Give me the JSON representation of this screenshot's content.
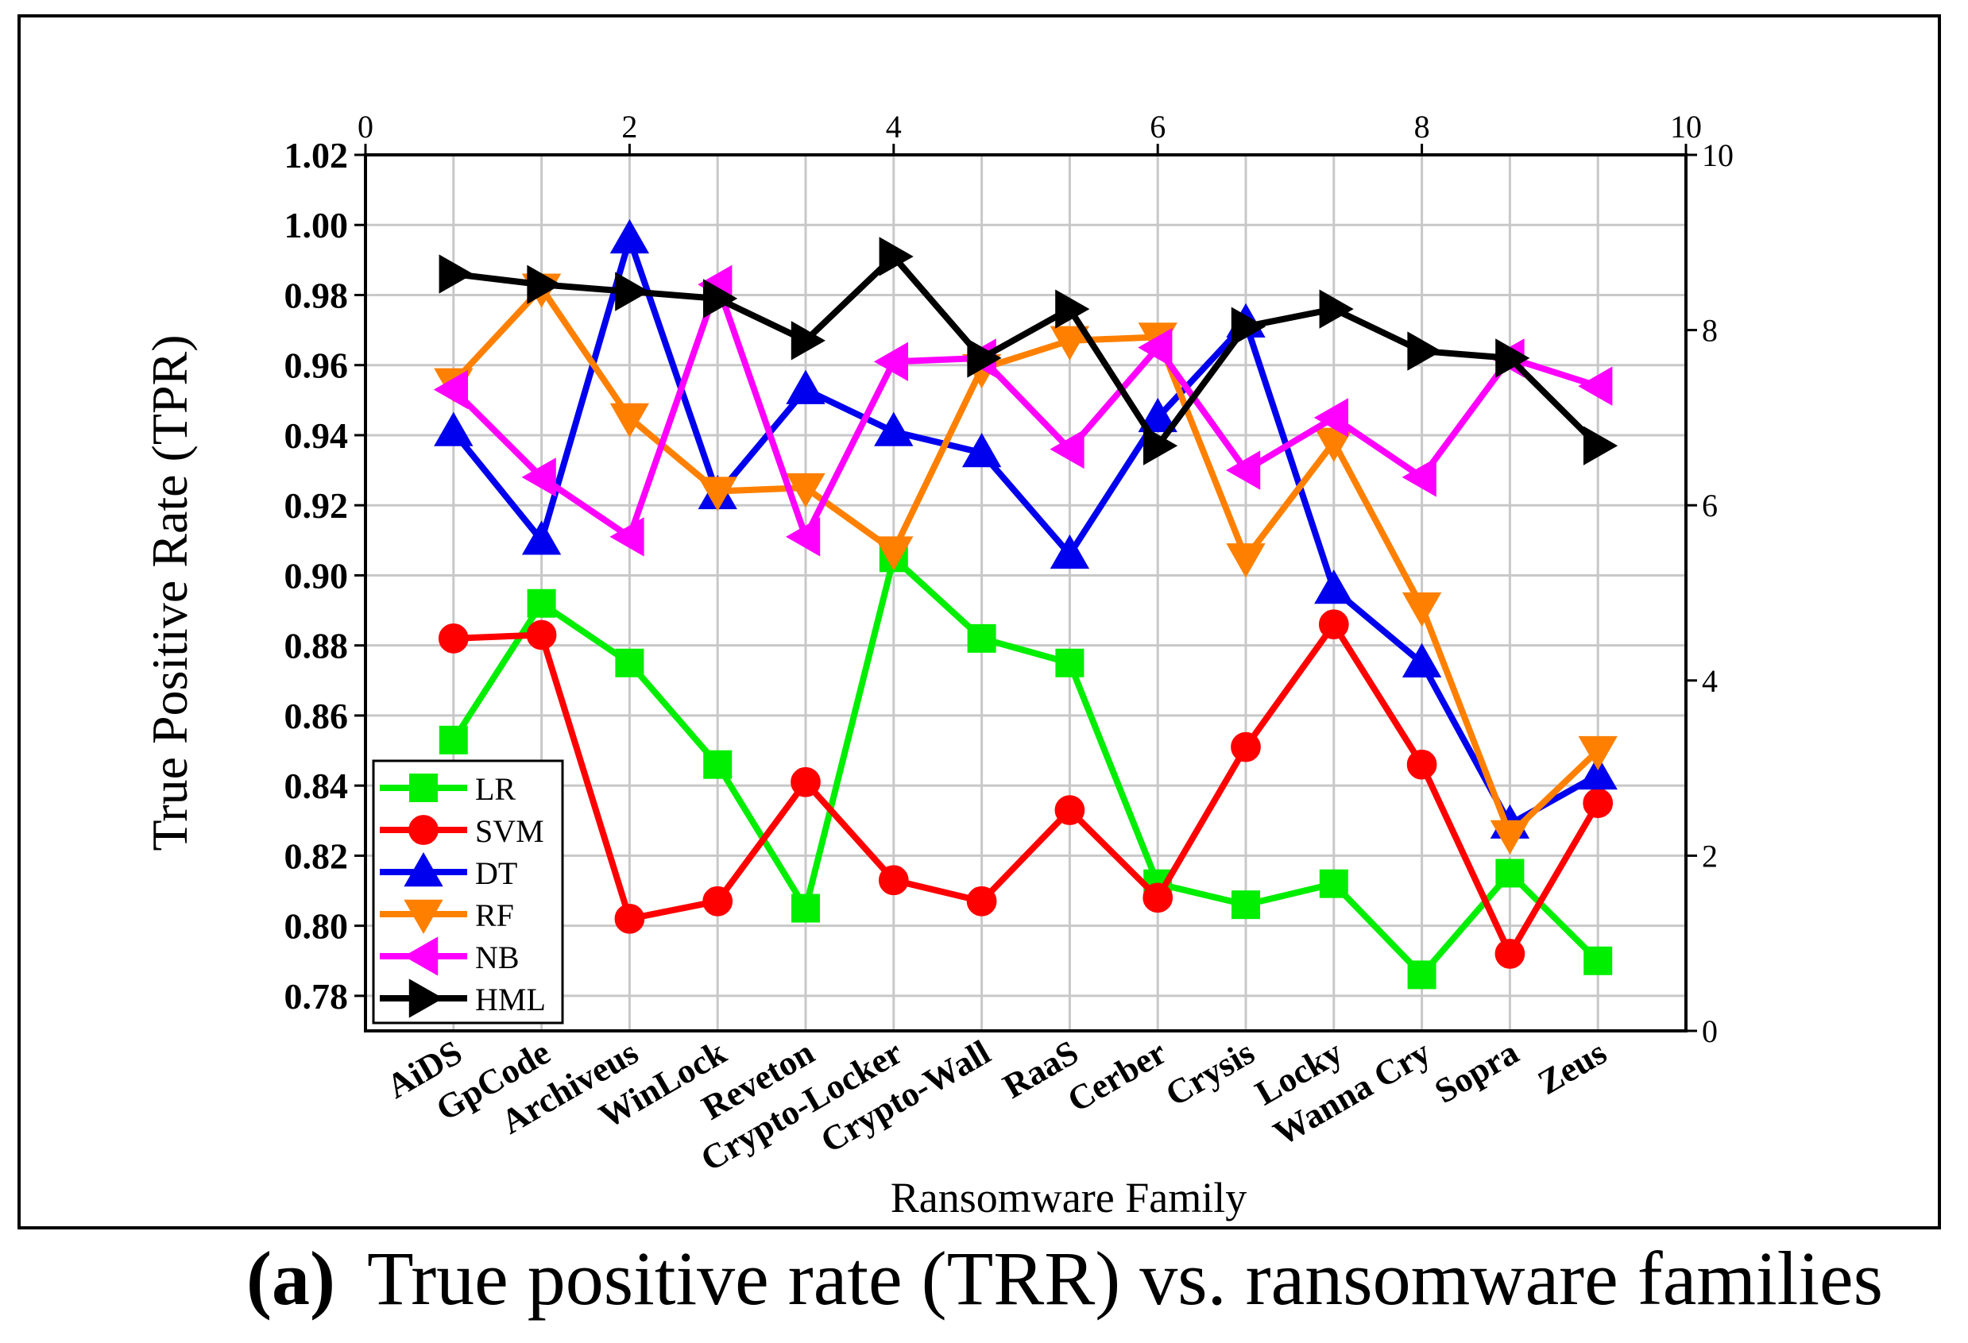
{
  "caption": {
    "label": "(a)",
    "text": "True positive rate (TRR) vs. ransomware families"
  },
  "chart_data": {
    "type": "line",
    "title": "",
    "xlabel": "Ransomware Family",
    "ylabel": "True Positive Rate (TPR)",
    "categories": [
      "AiDS",
      "GpCode",
      "Archiveus",
      "WinLock",
      "Reveton",
      "Crypto-Locker",
      "Crypto-Wall",
      "RaaS",
      "Cerber",
      "Crysis",
      "Locky",
      "Wanna Cry",
      "Sopra",
      "Zeus"
    ],
    "ylim": [
      0.77,
      1.02
    ],
    "yticks": [
      "0.78",
      "0.80",
      "0.82",
      "0.84",
      "0.86",
      "0.88",
      "0.90",
      "0.92",
      "0.94",
      "0.96",
      "0.98",
      "1.00",
      "1.02"
    ],
    "secondary_x": {
      "lim": [
        0,
        10
      ],
      "ticks": [
        "0",
        "2",
        "4",
        "6",
        "8",
        "10"
      ]
    },
    "secondary_y": {
      "lim": [
        0,
        10
      ],
      "ticks": [
        "0",
        "2",
        "4",
        "6",
        "8",
        "10"
      ]
    },
    "grid": true,
    "legend_position": "bottom-left",
    "series": [
      {
        "name": "LR",
        "color": "#00ee00",
        "marker": "square",
        "values": [
          0.853,
          0.892,
          0.875,
          0.846,
          0.805,
          0.905,
          0.882,
          0.875,
          0.812,
          0.806,
          0.812,
          0.786,
          0.815,
          0.79
        ]
      },
      {
        "name": "SVM",
        "color": "#ff0000",
        "marker": "circle",
        "values": [
          0.882,
          0.883,
          0.802,
          0.807,
          0.841,
          0.813,
          0.807,
          0.833,
          0.808,
          0.851,
          0.886,
          0.846,
          0.792,
          0.835
        ]
      },
      {
        "name": "DT",
        "color": "#0000ee",
        "marker": "triangle-up",
        "values": [
          0.941,
          0.91,
          0.996,
          0.923,
          0.953,
          0.941,
          0.935,
          0.906,
          0.945,
          0.972,
          0.896,
          0.875,
          0.829,
          0.843
        ]
      },
      {
        "name": "RF",
        "color": "#ff8000",
        "marker": "triangle-down",
        "values": [
          0.955,
          0.982,
          0.945,
          0.924,
          0.925,
          0.907,
          0.959,
          0.967,
          0.968,
          0.905,
          0.938,
          0.891,
          0.826,
          0.85
        ]
      },
      {
        "name": "NB",
        "color": "#ff00ff",
        "marker": "triangle-left",
        "values": [
          0.953,
          0.928,
          0.911,
          0.983,
          0.911,
          0.961,
          0.962,
          0.936,
          0.965,
          0.93,
          0.945,
          0.928,
          0.962,
          0.954
        ]
      },
      {
        "name": "HML",
        "color": "#000000",
        "marker": "triangle-right",
        "values": [
          0.986,
          0.983,
          0.981,
          0.979,
          0.967,
          0.991,
          0.962,
          0.976,
          0.937,
          0.971,
          0.976,
          0.964,
          0.962,
          0.937
        ]
      }
    ]
  }
}
